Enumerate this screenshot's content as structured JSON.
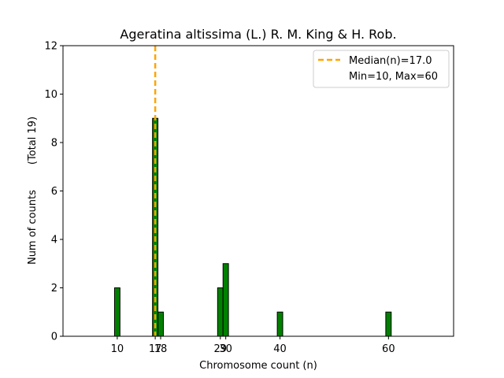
{
  "chart_data": {
    "type": "bar",
    "title": "Ageratina altissima (L.) R. M. King & H. Rob.",
    "xlabel": "Chromosome count (n)",
    "ylabel": "Num of counts",
    "ylabel_total": "(Total 19)",
    "xlim": [
      0,
      72
    ],
    "ylim": [
      0,
      12
    ],
    "yticks": [
      0,
      2,
      4,
      6,
      8,
      10,
      12
    ],
    "xticks": [
      10,
      17,
      18,
      29,
      30,
      40,
      60
    ],
    "bars": [
      {
        "x": 10,
        "count": 2
      },
      {
        "x": 17,
        "count": 9
      },
      {
        "x": 18,
        "count": 1
      },
      {
        "x": 29,
        "count": 2
      },
      {
        "x": 30,
        "count": 3
      },
      {
        "x": 40,
        "count": 1
      },
      {
        "x": 60,
        "count": 1
      }
    ],
    "median": 17.0,
    "legend": {
      "median_label": "Median(n)=17.0",
      "range_label": "Min=10, Max=60",
      "position": "top-right"
    },
    "colors": {
      "bar_fill": "#008000",
      "bar_edge": "#000000",
      "median_line": "#ffa500"
    }
  }
}
